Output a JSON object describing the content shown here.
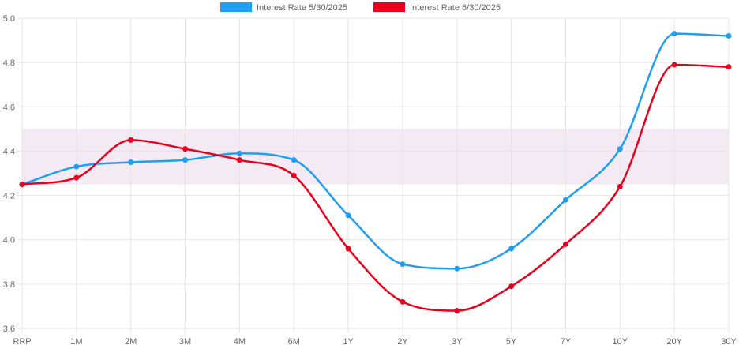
{
  "chart_data": {
    "type": "line",
    "title": "",
    "xlabel": "",
    "ylabel": "",
    "categories": [
      "RRP",
      "1M",
      "2M",
      "3M",
      "4M",
      "6M",
      "1Y",
      "2Y",
      "3Y",
      "5Y",
      "7Y",
      "10Y",
      "20Y",
      "30Y"
    ],
    "ylim": [
      3.6,
      5.0
    ],
    "yticks": [
      "3.6",
      "3.8",
      "4.0",
      "4.2",
      "4.4",
      "4.6",
      "4.8",
      "5.0"
    ],
    "grid": true,
    "legend_position": "top-center",
    "band": {
      "from": 4.25,
      "to": 4.5,
      "color": "#f3eaf4"
    },
    "series": [
      {
        "name": "Interest Rate 5/30/2025",
        "color": "#1e9ff2",
        "values": [
          4.25,
          4.33,
          4.35,
          4.36,
          4.39,
          4.36,
          4.11,
          3.89,
          3.87,
          3.96,
          4.18,
          4.41,
          4.93,
          4.92
        ]
      },
      {
        "name": "Interest Rate 6/30/2025",
        "color": "#e8001c",
        "values": [
          4.25,
          4.28,
          4.45,
          4.41,
          4.36,
          4.29,
          3.96,
          3.72,
          3.68,
          3.79,
          3.98,
          4.24,
          4.79,
          4.78
        ]
      }
    ]
  }
}
